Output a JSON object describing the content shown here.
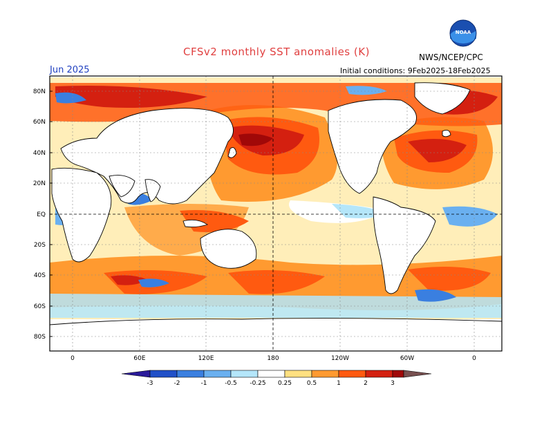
{
  "header": {
    "title": "CFSv2 monthly SST anomalies (K)",
    "agency": "NWS/NCEP/CPC",
    "valid_month": "Jun 2025",
    "initial_conditions": "Initial conditions: 9Feb2025-18Feb2025",
    "logo_text": "NOAA"
  },
  "map": {
    "lat_labels": [
      "80N",
      "60N",
      "40N",
      "20N",
      "EQ",
      "20S",
      "40S",
      "60S",
      "80S"
    ],
    "lon_labels": [
      "0",
      "60E",
      "120E",
      "180",
      "120W",
      "60W",
      "0"
    ]
  },
  "colorbar": {
    "labels": [
      "-3",
      "-2",
      "-1",
      "-0.5",
      "-0.25",
      "0.25",
      "0.5",
      "1",
      "2",
      "3"
    ],
    "colors": [
      "#2a1a9a",
      "#2050c8",
      "#3a7fe0",
      "#6ab0f0",
      "#b4e6fa",
      "#ffffff",
      "#ffe080",
      "#ff9a30",
      "#ff5a10",
      "#d42010",
      "#a00808",
      "#785050"
    ]
  },
  "colors": {
    "title": "#e04040",
    "month": "#2040c0",
    "ocean_base": "#ffffff",
    "land": "#ffffff"
  }
}
